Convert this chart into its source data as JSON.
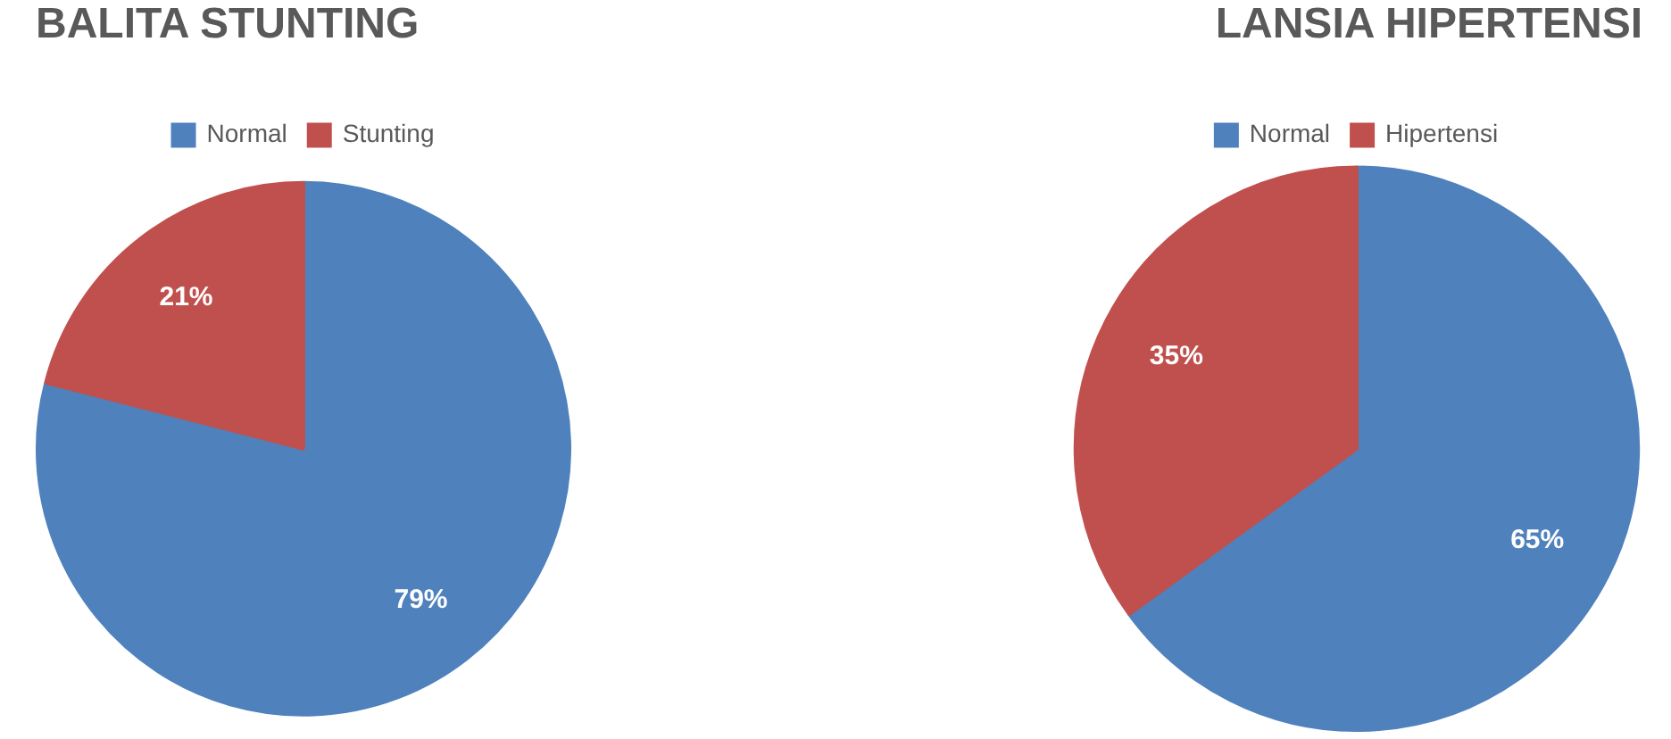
{
  "chart_data": [
    {
      "type": "pie",
      "title": "BALITA STUNTING",
      "categories": [
        "Normal",
        "Stunting"
      ],
      "values": [
        79,
        21
      ],
      "colors": [
        "#4f81bd",
        "#c0504d"
      ],
      "value_labels": [
        "79%",
        "21%"
      ],
      "legend": "top"
    },
    {
      "type": "pie",
      "title": "LANSIA HIPERTENSI",
      "categories": [
        "Normal",
        "Hipertensi"
      ],
      "values": [
        65,
        35
      ],
      "colors": [
        "#4f81bd",
        "#c0504d"
      ],
      "value_labels": [
        "65%",
        "35%"
      ],
      "legend": "top"
    }
  ]
}
